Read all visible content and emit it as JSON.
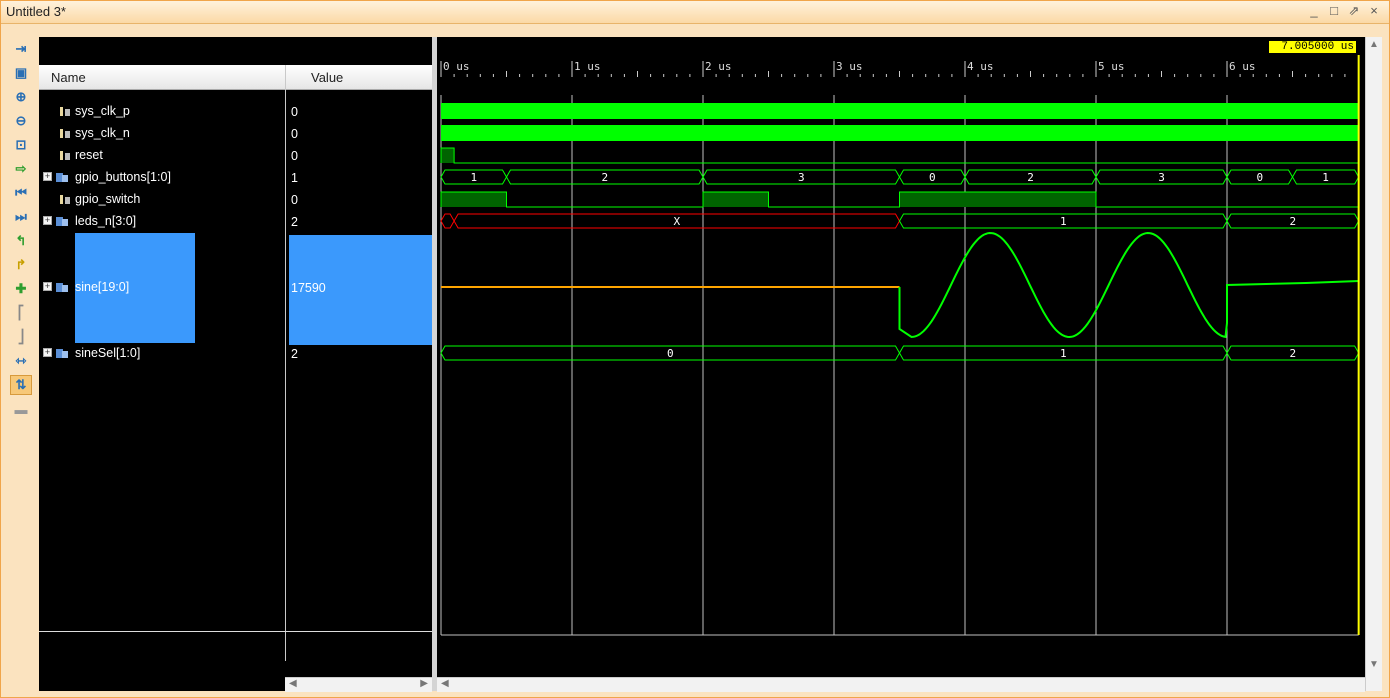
{
  "window": {
    "title": "Untitled 3*",
    "buttons": [
      "_",
      "□",
      "⇗",
      "×"
    ]
  },
  "toolbar": {
    "icons": [
      "fit-icon",
      "save-icon",
      "zoom-in-icon",
      "zoom-out-icon",
      "zoom-fit-icon",
      "go-to-cursor-icon",
      "go-to-start-icon",
      "go-to-end-icon",
      "previous-transition-icon",
      "next-transition-icon",
      "add-marker-icon",
      "previous-marker-icon",
      "next-marker-icon",
      "swap-cursors-icon",
      "snap-to-transition-icon",
      "floating-ruler-icon"
    ]
  },
  "columns": {
    "name": "Name",
    "value": "Value"
  },
  "signals": [
    {
      "name": "sys_clk_p",
      "value": "0",
      "kind": "bit",
      "expandable": false
    },
    {
      "name": "sys_clk_n",
      "value": "0",
      "kind": "bit",
      "expandable": false
    },
    {
      "name": "reset",
      "value": "0",
      "kind": "bit",
      "expandable": false
    },
    {
      "name": "gpio_buttons[1:0]",
      "value": "1",
      "kind": "bus",
      "expandable": true
    },
    {
      "name": "gpio_switch",
      "value": "0",
      "kind": "bit",
      "expandable": false
    },
    {
      "name": "leds_n[3:0]",
      "value": "2",
      "kind": "bus",
      "expandable": true
    },
    {
      "name": "sine[19:0]",
      "value": "17590",
      "kind": "bus",
      "expandable": true,
      "selected": true
    },
    {
      "name": "sineSel[1:0]",
      "value": "2",
      "kind": "bus",
      "expandable": true
    }
  ],
  "timeline": {
    "unit": "us",
    "ticks": [
      "0 us",
      "1 us",
      "2 us",
      "3 us",
      "4 us",
      "5 us",
      "6 us"
    ],
    "cursor_time": "7.005000 us",
    "end_time_us": 7.005
  },
  "waves": {
    "gpio_buttons": [
      {
        "t0": 0,
        "t1": 0.5,
        "label": "1"
      },
      {
        "t0": 0.5,
        "t1": 2.0,
        "label": "2"
      },
      {
        "t0": 2.0,
        "t1": 3.5,
        "label": "3"
      },
      {
        "t0": 3.5,
        "t1": 4.0,
        "label": "0"
      },
      {
        "t0": 4.0,
        "t1": 5.0,
        "label": "2"
      },
      {
        "t0": 5.0,
        "t1": 6.0,
        "label": "3"
      },
      {
        "t0": 6.0,
        "t1": 6.5,
        "label": "0"
      },
      {
        "t0": 6.5,
        "t1": 7.005,
        "label": "1"
      }
    ],
    "leds_n": [
      {
        "t0": 0,
        "t1": 0.1,
        "label": "",
        "state": "undefined"
      },
      {
        "t0": 0.1,
        "t1": 3.5,
        "label": "X",
        "state": "undefined"
      },
      {
        "t0": 3.5,
        "t1": 6.0,
        "label": "1"
      },
      {
        "t0": 6.0,
        "t1": 7.005,
        "label": "2"
      }
    ],
    "sineSel": [
      {
        "t0": 0,
        "t1": 3.5,
        "label": "0"
      },
      {
        "t0": 3.5,
        "t1": 6.0,
        "label": "1"
      },
      {
        "t0": 6.0,
        "t1": 7.005,
        "label": "2"
      }
    ],
    "reset_high": [
      {
        "t0": 0,
        "t1": 0.1
      }
    ],
    "gpio_switch_high": [
      {
        "t0": 0,
        "t1": 0.5
      },
      {
        "t0": 2.0,
        "t1": 2.5
      },
      {
        "t0": 3.5,
        "t1": 5.0
      }
    ],
    "colors": {
      "clock": "#00ff00",
      "bus": "#00ff00",
      "undefined": "#ff0000",
      "analog_flat": "#ffa500",
      "analog": "#00ff00",
      "high_fill": "#006400",
      "cursor": "#ffff00",
      "grid": "#c0c0c0",
      "selection": "#3b99fc"
    }
  }
}
